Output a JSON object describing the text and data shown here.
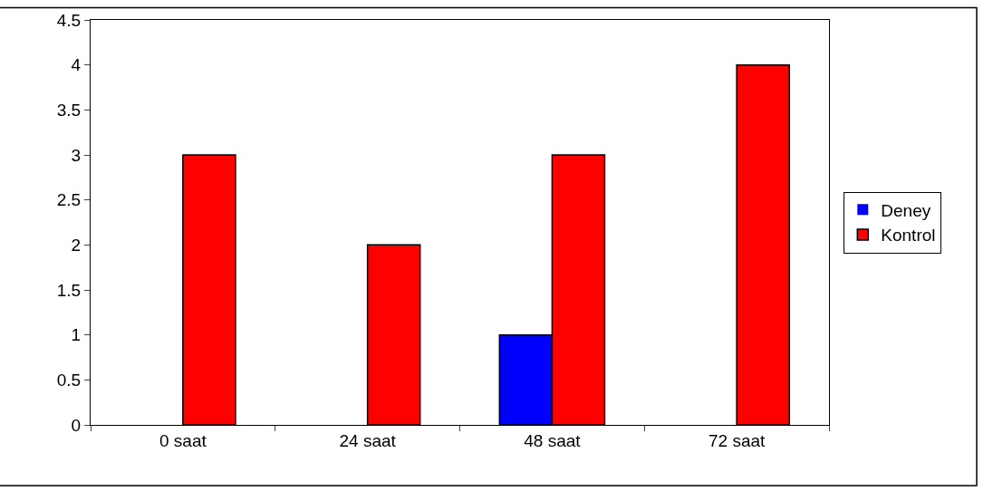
{
  "chart_data": {
    "type": "bar",
    "categories": [
      "0 saat",
      "24 saat",
      "48 saat",
      "72 saat"
    ],
    "series": [
      {
        "name": "Deney",
        "color": "#0000ff",
        "values": [
          0,
          0,
          1,
          0
        ]
      },
      {
        "name": "Kontrol",
        "color": "#ff0000",
        "values": [
          3,
          2,
          3,
          4
        ]
      }
    ],
    "ylim": [
      0,
      4.5
    ],
    "yticks": [
      0,
      0.5,
      1,
      1.5,
      2,
      2.5,
      3,
      3.5,
      4,
      4.5
    ],
    "grid": false,
    "legend": "right"
  }
}
